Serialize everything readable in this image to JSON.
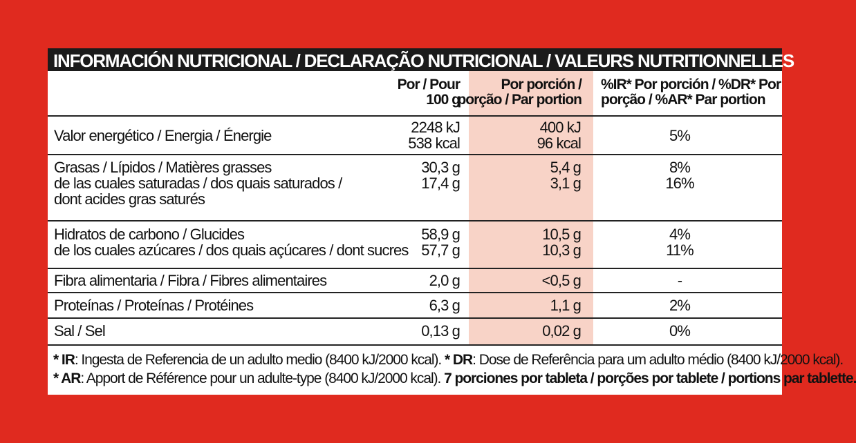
{
  "title": "INFORMACIÓN NUTRICIONAL / DECLARAÇÃO NUTRICIONAL / VALEURS NUTRITIONNELLES",
  "headers": {
    "per100": [
      "Por / Pour",
      "100 g"
    ],
    "perPortion": [
      "Por porción /",
      "porção / Par portion"
    ],
    "pct": [
      "%IR* Por porción / %DR* Por",
      "porção / %AR* Par portion"
    ]
  },
  "rows": {
    "energy": {
      "label": "Valor energético / Energia / Énergie",
      "per100": [
        "2248 kJ",
        "538 kcal"
      ],
      "perPortion": [
        "400 kJ",
        "96 kcal"
      ],
      "pct": "5%"
    },
    "fat": {
      "label": [
        "Grasas / Lípidos / Matières grasses",
        "de las cuales saturadas / dos quais saturados /",
        "dont acides gras saturés"
      ],
      "per100": [
        "30,3 g",
        "17,4 g"
      ],
      "perPortion": [
        "5,4 g",
        "3,1 g"
      ],
      "pct": [
        "8%",
        "16%"
      ]
    },
    "carbs": {
      "label": [
        "Hidratos de carbono / Glucides",
        "de los cuales azúcares / dos quais açúcares / dont sucres"
      ],
      "per100": [
        "58,9 g",
        "57,7 g"
      ],
      "perPortion": [
        "10,5 g",
        "10,3 g"
      ],
      "pct": [
        "4%",
        "11%"
      ]
    },
    "fibre": {
      "label": "Fibra alimentaria / Fibra / Fibres alimentaires",
      "per100": "2,0 g",
      "perPortion": "<0,5 g",
      "pct": "-"
    },
    "protein": {
      "label": "Proteínas / Proteínas / Protéines",
      "per100": "6,3 g",
      "perPortion": "1,1 g",
      "pct": "2%"
    },
    "salt": {
      "label": "Sal / Sel",
      "per100": "0,13 g",
      "perPortion": "0,02 g",
      "pct": "0%"
    }
  },
  "footnotes": {
    "line1": {
      "ir_key": "* IR",
      "ir_text": ": Ingesta de Referencia de un adulto medio (8400 kJ/2000 kcal). ",
      "dr_key": "* DR",
      "dr_text": ": Dose de Referência para um adulto médio (8400 kJ/2000 kcal)."
    },
    "line2": {
      "ar_key": "* AR",
      "ar_text": ": Apport de Référence pour un adulte-type (8400 kJ/2000 kcal). ",
      "portions": "7 porciones por tableta / porções por tablete / portions par tablette."
    }
  }
}
